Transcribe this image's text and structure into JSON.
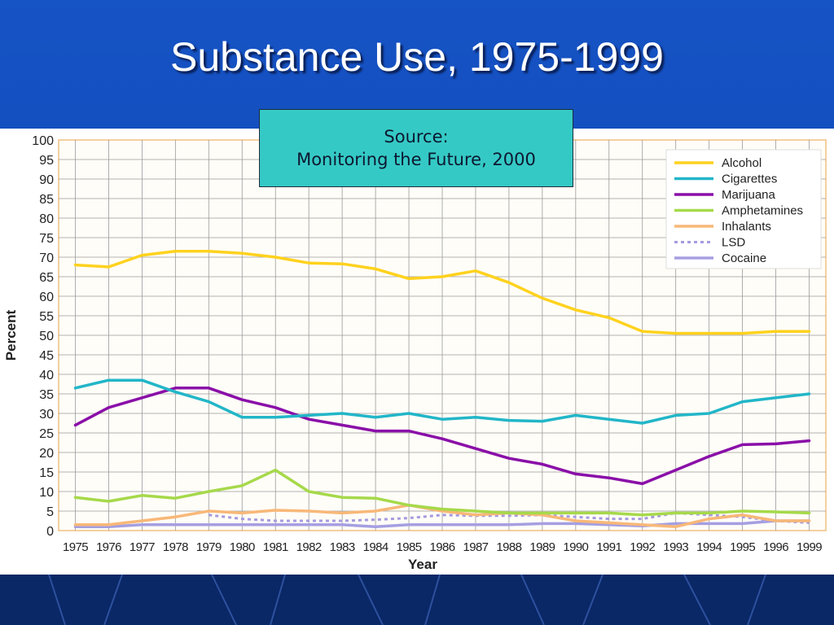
{
  "slide": {
    "title": "Substance Use, 1975-1999",
    "source_line1": "Source:",
    "source_line2": "Monitoring the Future, 2000"
  },
  "colors": {
    "background": "#1653c4",
    "source_box": "#35c9c5",
    "alcohol": "#ffd21e",
    "cigarettes": "#22b6c8",
    "marijuana": "#8a0fa8",
    "amphetamines": "#a6d94a",
    "inhalants": "#f8b878",
    "lsd": "#a69ae0",
    "cocaine": "#a59fe2"
  },
  "chart_data": {
    "type": "line",
    "xlabel": "Year",
    "ylabel": "Percent",
    "ylim": [
      0,
      100
    ],
    "y_ticks": [
      "0",
      "5",
      "10",
      "15",
      "20",
      "25",
      "30",
      "35",
      "40",
      "45",
      "50",
      "55",
      "60",
      "65",
      "70",
      "75",
      "80",
      "85",
      "90",
      "95",
      "100"
    ],
    "x": [
      "1975",
      "1976",
      "1977",
      "1978",
      "1979",
      "1980",
      "1981",
      "1982",
      "1983",
      "1984",
      "1985",
      "1986",
      "1987",
      "1988",
      "1989",
      "1990",
      "1991",
      "1992",
      "1993",
      "1994",
      "1995",
      "1996",
      "1999"
    ],
    "grid": true,
    "legend_position": "top-right",
    "series": [
      {
        "name": "Alcohol",
        "color": "#ffd21e",
        "dash": false,
        "values": [
          68,
          67.5,
          70.5,
          71.5,
          71.5,
          71,
          70,
          68.5,
          68.3,
          67,
          64.5,
          65,
          66.5,
          63.5,
          59.5,
          56.5,
          54.5,
          51,
          50.5,
          50.5,
          50.5,
          51,
          51
        ]
      },
      {
        "name": "Cigarettes",
        "color": "#22b6c8",
        "dash": false,
        "values": [
          36.5,
          38.5,
          38.5,
          35.5,
          33,
          29,
          29,
          29.5,
          30,
          29,
          30,
          28.5,
          29,
          28.2,
          28,
          29.5,
          28.5,
          27.5,
          29.5,
          30,
          33,
          34,
          35
        ]
      },
      {
        "name": "Marijuana",
        "color": "#8a0fa8",
        "dash": false,
        "values": [
          27,
          31.5,
          34,
          36.5,
          36.5,
          33.5,
          31.5,
          28.5,
          27,
          25.5,
          25.5,
          23.5,
          21,
          18.5,
          17,
          14.5,
          13.5,
          12,
          15.5,
          19,
          22,
          22.2,
          23
        ]
      },
      {
        "name": "Amphetamines",
        "color": "#a6d94a",
        "dash": false,
        "values": [
          8.5,
          7.5,
          9,
          8.3,
          10,
          11.5,
          15.5,
          10,
          8.5,
          8.3,
          6.5,
          5.5,
          5,
          4.5,
          4.5,
          4.5,
          4.5,
          4,
          4.5,
          4.5,
          5,
          4.8,
          4.5
        ]
      },
      {
        "name": "Inhalants",
        "color": "#f8b878",
        "dash": false,
        "values": [
          1.5,
          1.5,
          2.5,
          3.5,
          5,
          4.5,
          5.2,
          5,
          4.5,
          5,
          6.5,
          5,
          4,
          4.5,
          4,
          2.5,
          2,
          1.5,
          1,
          3,
          4,
          2.5,
          2.5
        ]
      },
      {
        "name": "LSD",
        "color": "#a69ae0",
        "dash": true,
        "values": [
          null,
          null,
          null,
          null,
          4,
          3,
          2.5,
          2.5,
          2.5,
          2.8,
          3.2,
          4,
          3.8,
          3.8,
          4,
          3.5,
          3,
          3,
          4.5,
          4,
          3.5,
          2.5,
          2
        ]
      },
      {
        "name": "Cocaine",
        "color": "#a59fe2",
        "dash": false,
        "values": [
          1,
          1,
          1.5,
          1.5,
          1.5,
          1.5,
          1.5,
          1.5,
          1.5,
          1,
          1.5,
          1.5,
          1.5,
          1.5,
          1.8,
          1.8,
          1.5,
          1.2,
          1.8,
          1.8,
          1.8,
          2.5,
          2.5
        ]
      }
    ]
  }
}
